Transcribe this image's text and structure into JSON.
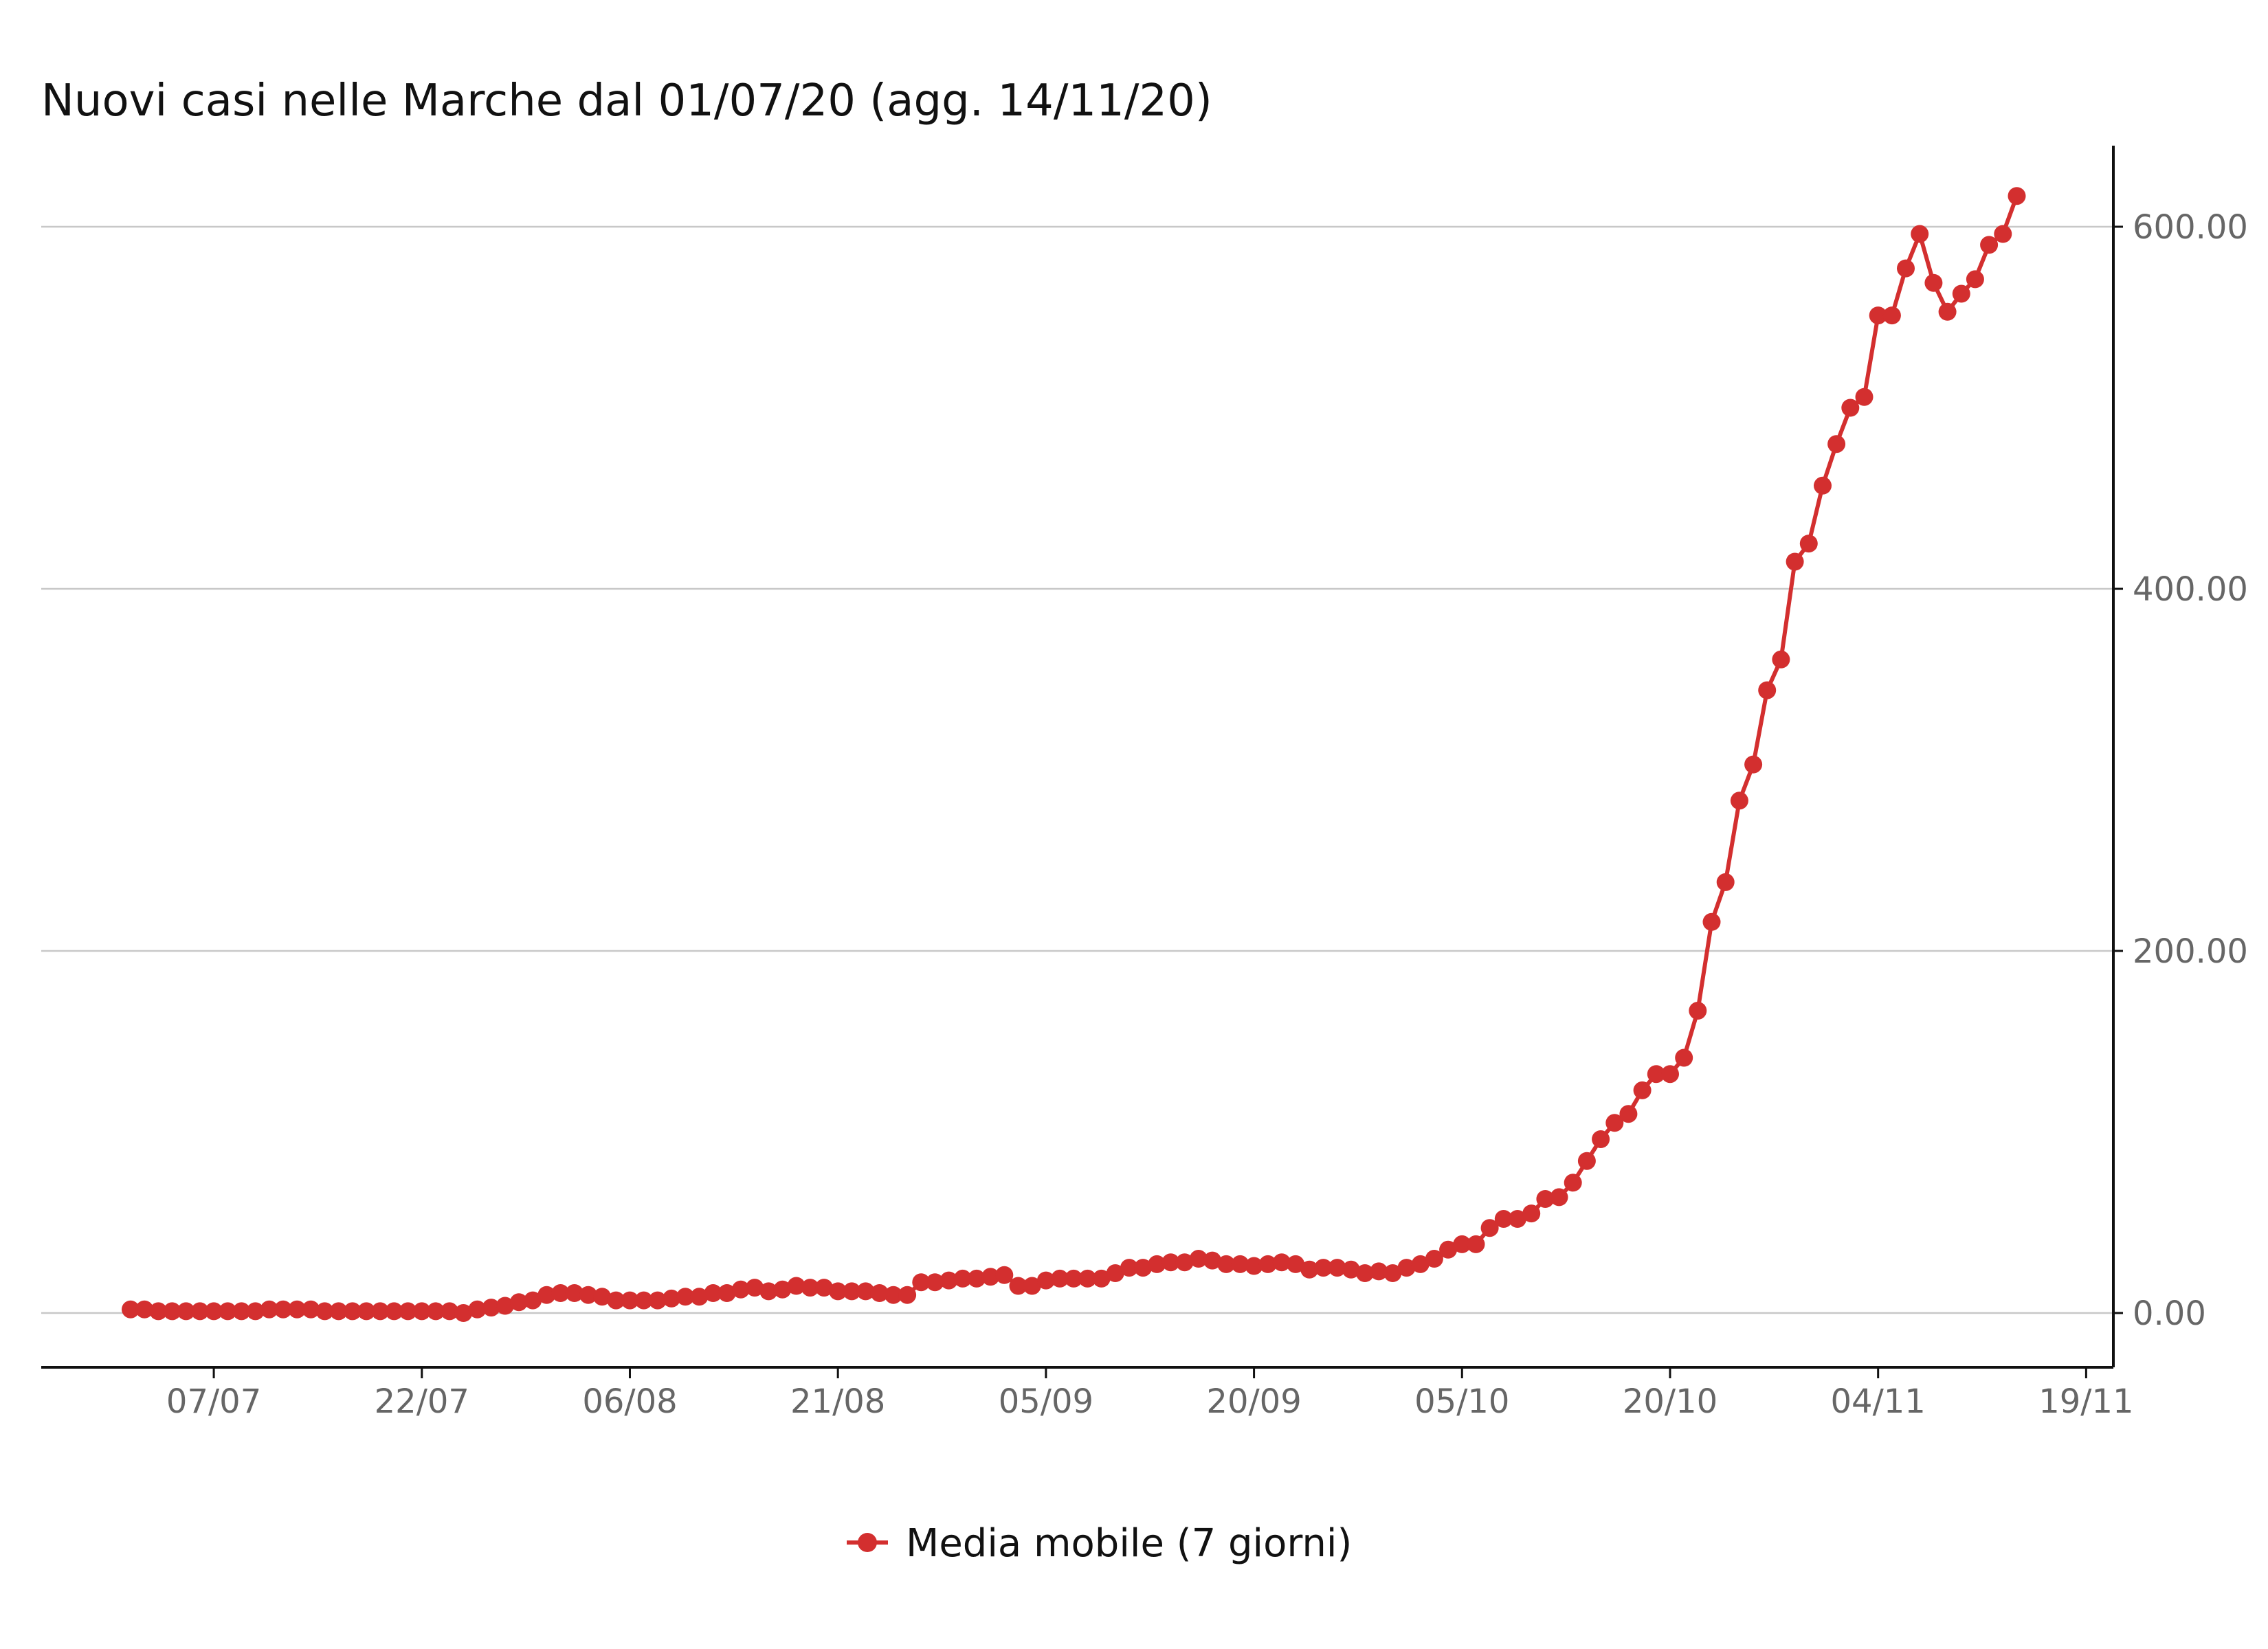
{
  "chart_data": {
    "type": "line",
    "title": "Nuovi casi nelle Marche dal 01/07/20 (agg. 14/11/20)",
    "xlabel": "",
    "ylabel": "",
    "x_axis": {
      "ticks": [
        "07/07",
        "22/07",
        "06/08",
        "21/08",
        "05/09",
        "20/09",
        "05/10",
        "20/10",
        "04/11",
        "19/11"
      ],
      "range": [
        "2020-07-01",
        "2020-11-19"
      ]
    },
    "y_axis": {
      "position": "right",
      "ticks": [
        "0.00",
        "200.00",
        "400.00",
        "600.00"
      ],
      "ylim": [
        -30,
        650
      ]
    },
    "grid": true,
    "legend": {
      "position": "bottom",
      "entries": [
        "Media mobile (7 giorni)"
      ]
    },
    "color": "#d32f2f",
    "series": [
      {
        "name": "Media mobile (7 giorni)",
        "start_date": "2020-07-01",
        "values": [
          2,
          2,
          1,
          1,
          1,
          1,
          1,
          1,
          1,
          1,
          2,
          2,
          2,
          2,
          1,
          1,
          1,
          1,
          1,
          1,
          1,
          1,
          1,
          1,
          0,
          2,
          3,
          4,
          6,
          7,
          10,
          11,
          11,
          10,
          9,
          7,
          7,
          7,
          7,
          8,
          9,
          9,
          11,
          11,
          13,
          14,
          12,
          13,
          15,
          14,
          14,
          12,
          12,
          12,
          11,
          10,
          10,
          17,
          17,
          18,
          19,
          19,
          20,
          21,
          15,
          15,
          18,
          19,
          19,
          19,
          19,
          22,
          25,
          25,
          27,
          28,
          28,
          30,
          29,
          27,
          27,
          26,
          27,
          28,
          27,
          24,
          25,
          25,
          24,
          22,
          23,
          22,
          25,
          27,
          30,
          35,
          38,
          38,
          47,
          52,
          52,
          55,
          63,
          64,
          72,
          84,
          96,
          105,
          110,
          123,
          132,
          132,
          141,
          167,
          216,
          238,
          283,
          303,
          344,
          361,
          415,
          425,
          457,
          480,
          500,
          506,
          551,
          551,
          577,
          596,
          569,
          553,
          563,
          571,
          590,
          596,
          617
        ]
      }
    ]
  }
}
